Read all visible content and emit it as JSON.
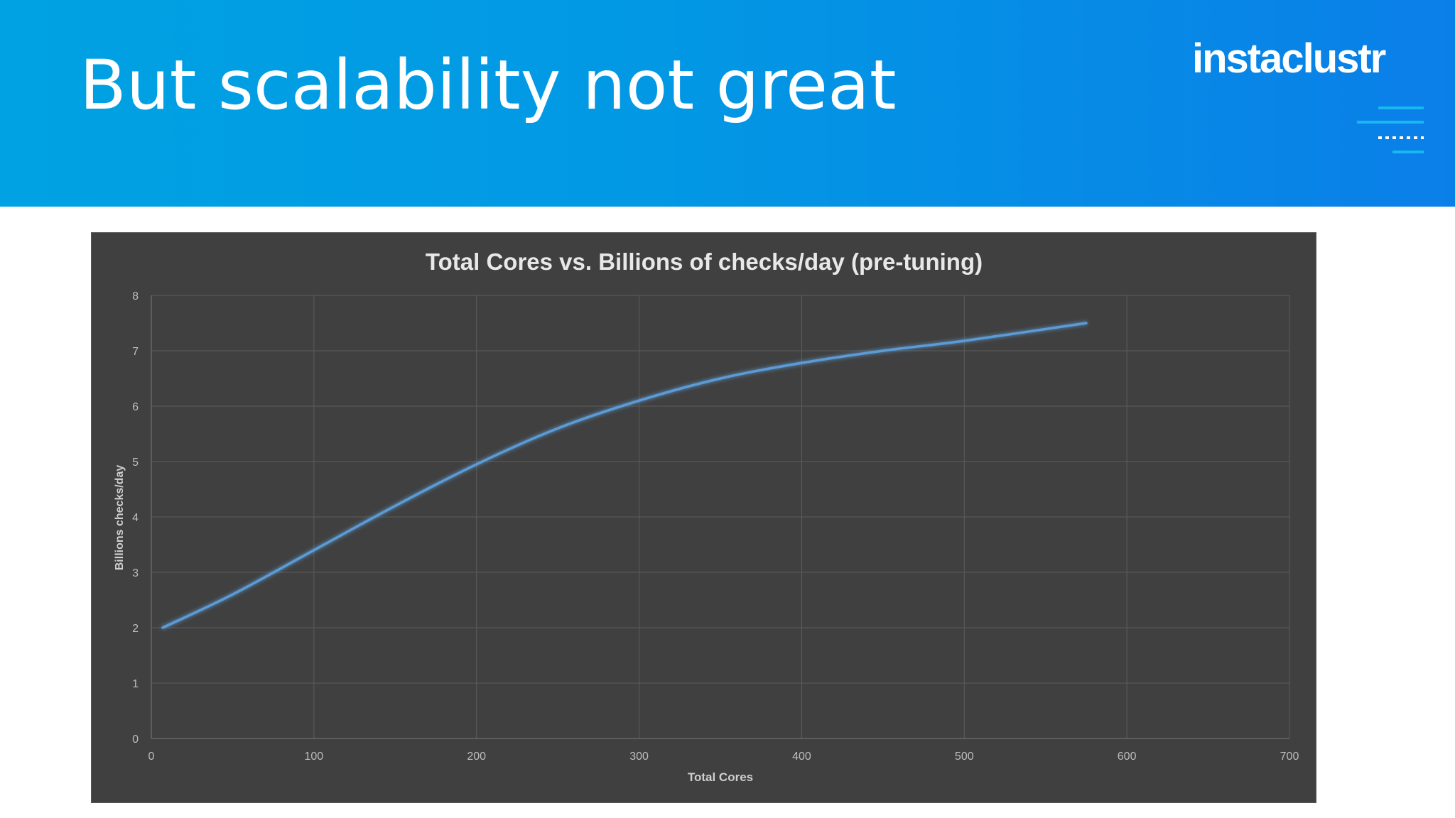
{
  "slide": {
    "title": "But scalability not great",
    "logo_text": "instaclustr"
  },
  "colors": {
    "banner_start": "#00a2e3",
    "banner_end": "#0a7fe8",
    "chart_background": "#404040",
    "series_line": "#5b9bd5",
    "logo_accent": "#19b8f0"
  },
  "chart_data": {
    "type": "line",
    "title": "Total Cores vs. Billions of checks/day (pre-tuning)",
    "xlabel": "Total Cores",
    "ylabel": "Billions checks/day",
    "xlim": [
      0,
      700
    ],
    "ylim": [
      0,
      8
    ],
    "x_ticks": [
      "0",
      "100",
      "200",
      "300",
      "400",
      "500",
      "600",
      "700"
    ],
    "y_ticks": [
      "0",
      "1",
      "2",
      "3",
      "4",
      "5",
      "6",
      "7",
      "8"
    ],
    "grid": true,
    "smooth": true,
    "series": [
      {
        "x": [
          7,
          50,
          100,
          150,
          200,
          250,
          300,
          350,
          400,
          450,
          500,
          575
        ],
        "y": [
          2.0,
          2.6,
          3.4,
          4.2,
          4.95,
          5.6,
          6.1,
          6.5,
          6.78,
          7.0,
          7.18,
          7.5
        ]
      }
    ]
  }
}
